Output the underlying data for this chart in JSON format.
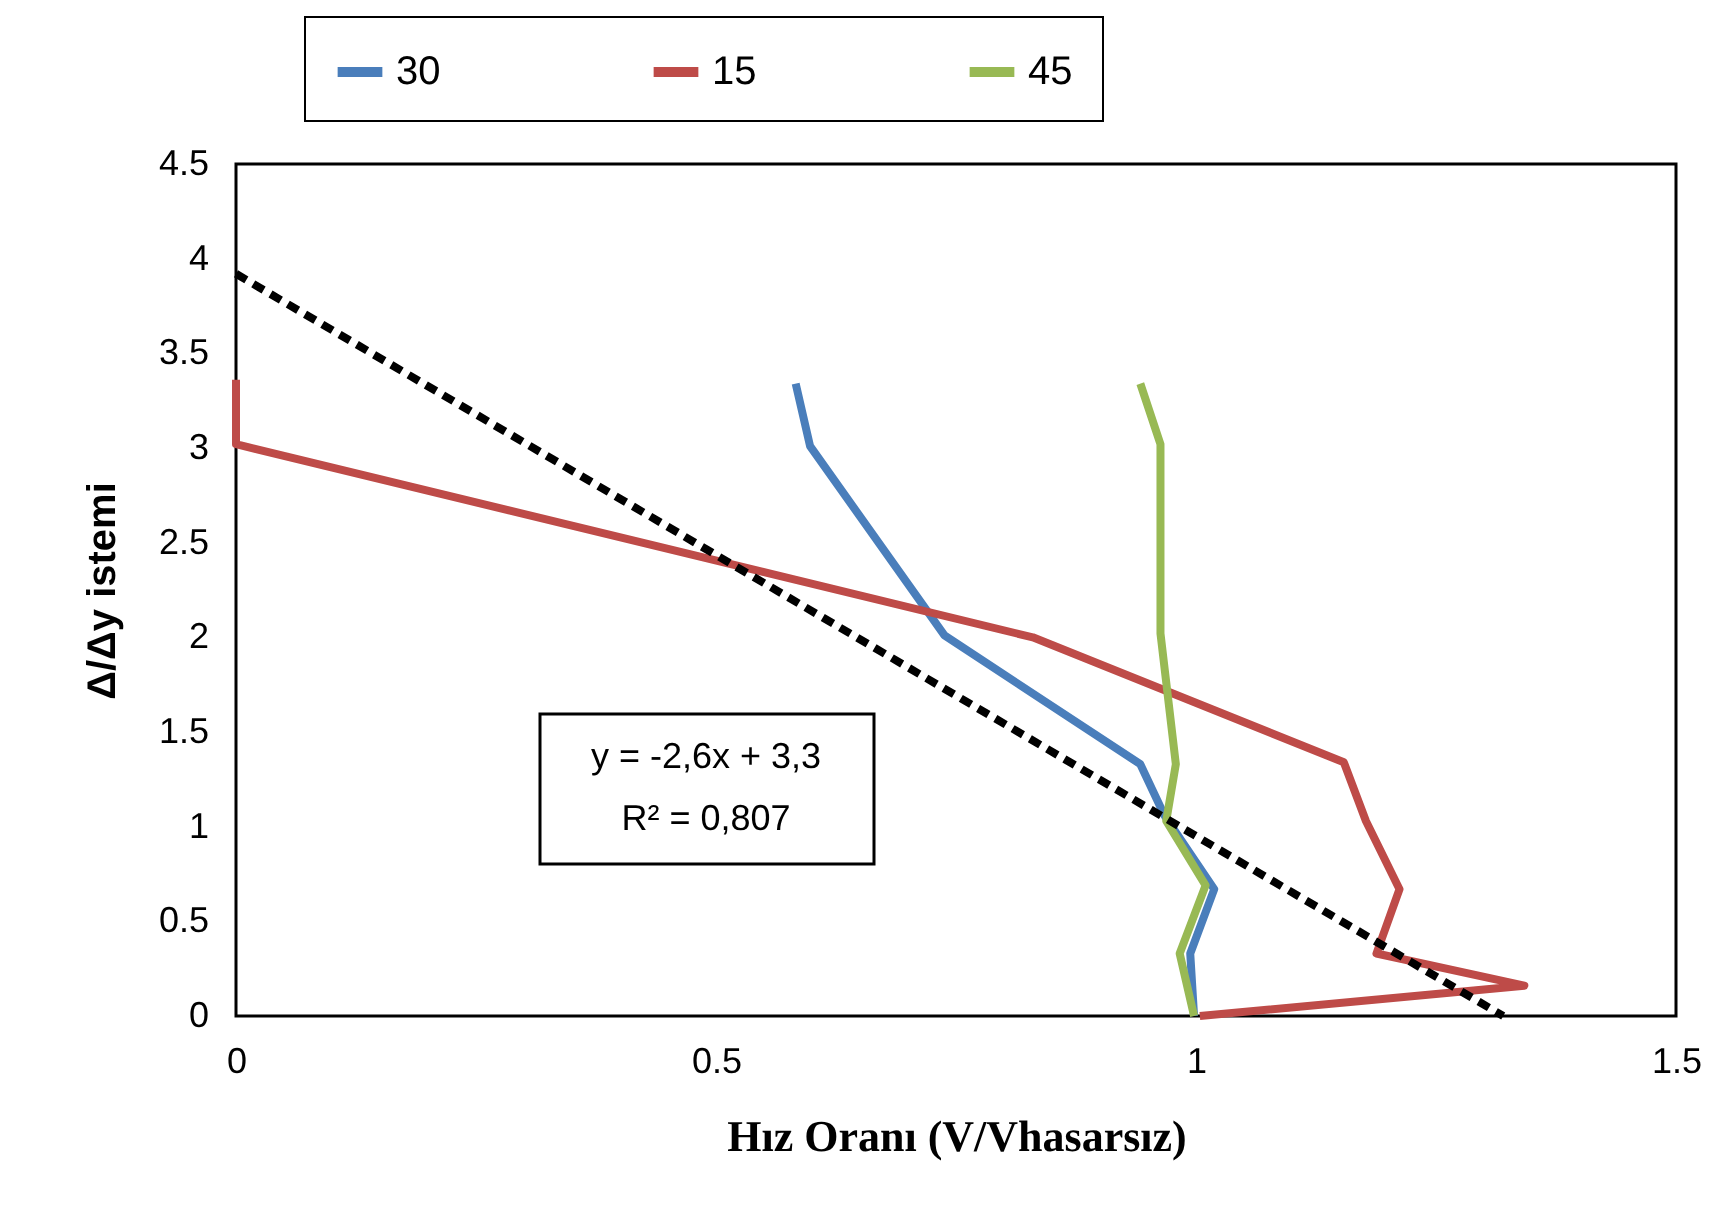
{
  "chart_data": {
    "type": "line",
    "xlabel": "Hız Oranı (V/Vhasarsız)",
    "ylabel": "Δ/Δy istemi",
    "xlim": [
      0,
      1.5
    ],
    "xticks": [
      0,
      0.5,
      1,
      1.5
    ],
    "ylim": [
      0,
      4.5
    ],
    "yticks": [
      0,
      0.5,
      1,
      1.5,
      2,
      2.5,
      3,
      3.5,
      4,
      4.5
    ],
    "grid": false,
    "legend": "top",
    "line_style": "solid",
    "annotations": [
      "y = -2,6x + 3,3",
      "R² = 0,807"
    ],
    "series": [
      {
        "name": "30",
        "color": "#4a7ebb",
        "x": [
          0.583,
          0.598,
          0.738,
          0.942,
          0.967,
          1.019,
          0.994,
          0.998
        ],
        "values": [
          3.34,
          3.01,
          2.01,
          1.33,
          1.06,
          0.67,
          0.33,
          0
        ]
      },
      {
        "name": "15",
        "color": "#be4b48",
        "x": [
          0,
          0,
          0.83,
          1.154,
          1.177,
          1.212,
          1.188,
          1.342,
          1.004
        ],
        "values": [
          3.36,
          3.02,
          2.0,
          1.34,
          1.03,
          0.67,
          0.33,
          0.16,
          0
        ]
      },
      {
        "name": "45",
        "color": "#98b954",
        "x": [
          0.942,
          0.963,
          0.963,
          0.979,
          0.969,
          1.01,
          0.983,
          0.998
        ],
        "values": [
          3.34,
          3.02,
          2.02,
          1.33,
          1.03,
          0.69,
          0.33,
          0
        ]
      },
      {
        "type": "line",
        "line_style": "dashed",
        "color": "#000000",
        "x": [
          0,
          1.32
        ],
        "values": [
          3.92,
          0
        ]
      }
    ]
  }
}
